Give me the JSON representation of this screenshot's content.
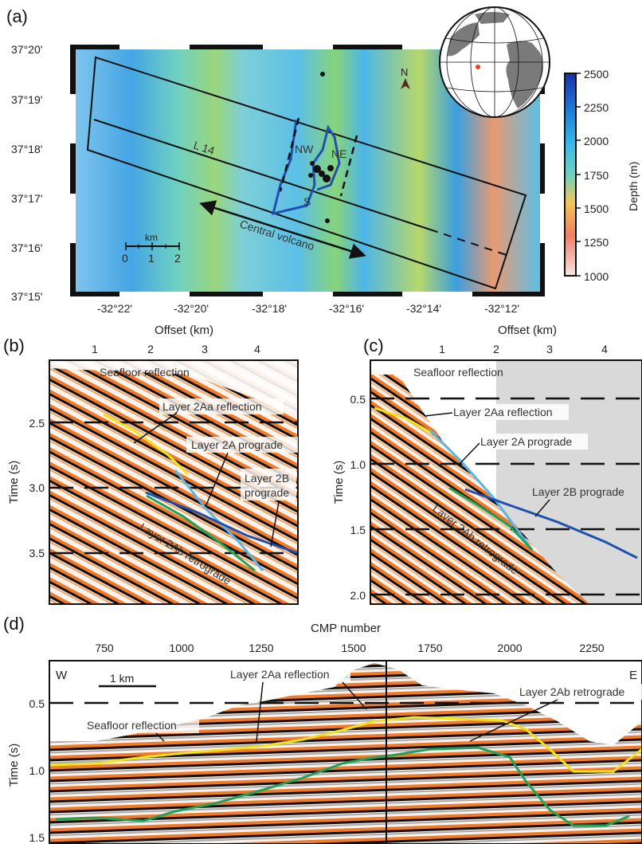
{
  "panel_a": {
    "letter": "(a)",
    "lat_labels": [
      "37°20'",
      "37°19'",
      "37°18'",
      "37°17'",
      "37°16'",
      "37°15'"
    ],
    "lon_labels": [
      "-32°22'",
      "-32°20'",
      "-32°18'",
      "-32°16'",
      "-32°14'",
      "-32°12'"
    ],
    "line_label": "L 14",
    "north_label": "N",
    "scale_unit": "km",
    "scale_ticks": [
      "0",
      "1",
      "2"
    ],
    "arrow_label": "Central volcano",
    "region_labels": [
      "NW",
      "NE",
      "S"
    ],
    "colorbar": {
      "title": "Depth (m)",
      "ticks": [
        "2500",
        "2250",
        "2000",
        "1750",
        "1500",
        "1250",
        "1000"
      ],
      "colors": [
        "#1b2fa8",
        "#1d7bd6",
        "#37b6e8",
        "#6fd1c2",
        "#f2c65a",
        "#ee7f66",
        "#f7e6e3"
      ]
    }
  },
  "panel_b": {
    "letter": "(b)",
    "x_title": "Offset (km)",
    "x_ticks": [
      "1",
      "2",
      "3",
      "4"
    ],
    "y_title": "Time (s)",
    "y_ticks": [
      "2.5",
      "3.0",
      "3.5"
    ],
    "annotations": [
      "Seafloor reflection",
      "Layer 2Aa reflection",
      "Layer 2A prograde",
      "Layer 2B",
      "prograde",
      "Layer 2Ab retrograde"
    ]
  },
  "panel_c": {
    "letter": "(c)",
    "x_title": "Offset (km)",
    "x_ticks": [
      "1",
      "2",
      "3",
      "4"
    ],
    "y_title": "Time (s)",
    "y_ticks": [
      "0.5",
      "1.0",
      "1.5",
      "2.0"
    ],
    "annotations": [
      "Seafloor reflection",
      "Layer 2Aa reflection",
      "Layer 2A prograde",
      "Layer 2B prograde",
      "Layer 2Ab retrograde"
    ]
  },
  "panel_d": {
    "letter": "(d)",
    "x_title": "CMP number",
    "x_ticks": [
      "750",
      "1000",
      "1250",
      "1500",
      "1750",
      "2000",
      "2250"
    ],
    "y_title": "Time (s)",
    "y_ticks": [
      "0.5",
      "1.0",
      "1.5"
    ],
    "corner_left": "W",
    "corner_right": "E",
    "scale_label": "1 km",
    "annotations": [
      "Layer 2Aa reflection",
      "Layer 2Ab retrograde",
      "Seafloor reflection"
    ]
  },
  "colors": {
    "seismic_orange": "#f07a2a",
    "layer_2aa": "#f2e21a",
    "layer_2a_prograde": "#5ab4e6",
    "layer_2b_prograde": "#1f4fb0",
    "layer_2ab_retrograde": "#1ea35a",
    "shade": "#d9d9d9"
  }
}
